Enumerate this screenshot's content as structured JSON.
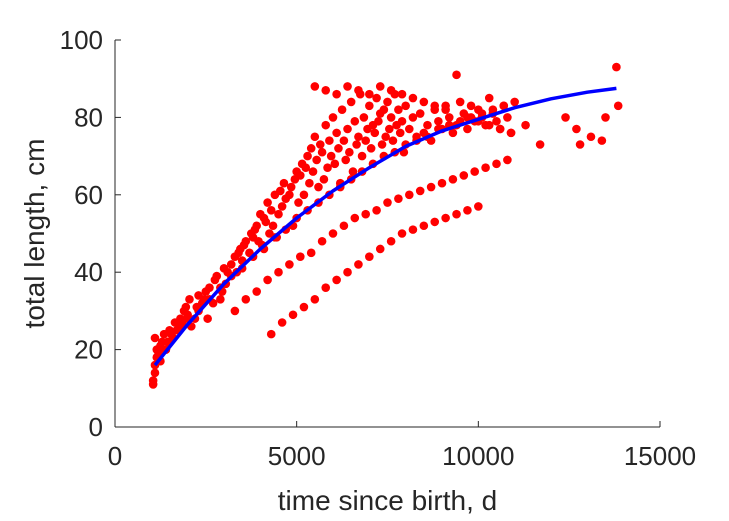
{
  "chart_data": {
    "type": "scatter",
    "title": "",
    "xlabel": "time since birth, d",
    "ylabel": "total length, cm",
    "xlim": [
      0,
      15000
    ],
    "ylim": [
      0,
      100
    ],
    "xticks": [
      0,
      5000,
      10000,
      15000
    ],
    "yticks": [
      0,
      20,
      40,
      60,
      80,
      100
    ],
    "grid": false,
    "legend": "none",
    "colors": {
      "points": "#ff0000",
      "fit": "#0000ff",
      "axis": "#262626"
    },
    "series": [
      {
        "kind": "points",
        "x": [
          1050,
          1050,
          1100,
          1100,
          1150,
          1150,
          1200,
          1200,
          1250,
          1300,
          1350,
          1400,
          1450,
          1500,
          1550,
          1600,
          1650,
          1700,
          1750,
          1800,
          1850,
          1900,
          1950,
          2000,
          2050,
          2100,
          2200,
          2250,
          2300,
          2400,
          2450,
          2500,
          2550,
          2600,
          2700,
          2750,
          2800,
          2900,
          2950,
          3000,
          3050,
          3100,
          3200,
          3300,
          3350,
          3400,
          3450,
          3500,
          3550,
          3600,
          3700,
          3750,
          3800,
          3850,
          3900,
          3950,
          4000,
          4050,
          4100,
          4150,
          4200,
          4250,
          4300,
          4350,
          4400,
          4450,
          4500,
          4550,
          4600,
          4650,
          4700,
          4800,
          4850,
          4900,
          4950,
          5000,
          5050,
          5100,
          5150,
          5200,
          5250,
          5300,
          5350,
          5400,
          5450,
          5500,
          5550,
          5600,
          5650,
          5700,
          5750,
          5800,
          5850,
          5900,
          5950,
          6000,
          6050,
          6100,
          6150,
          6200,
          6250,
          6300,
          6350,
          6400,
          6450,
          6500,
          6550,
          6600,
          6650,
          6700,
          6750,
          6800,
          6850,
          6900,
          6950,
          7000,
          7050,
          7100,
          7150,
          7200,
          7250,
          7300,
          7350,
          7400,
          7450,
          7500,
          7550,
          7600,
          7650,
          7700,
          7750,
          7800,
          7850,
          7900,
          7950,
          8000,
          8100,
          8200,
          8300,
          8400,
          8500,
          8600,
          8700,
          8800,
          8900,
          9000,
          9100,
          9200,
          9300,
          9400,
          9500,
          9600,
          9700,
          9800,
          9900,
          10000,
          10100,
          10200,
          10300,
          10400,
          10500,
          10600,
          10700,
          10800,
          10900,
          11000,
          11300,
          11700,
          12400,
          12700,
          12800,
          13100,
          13400,
          13500,
          13800,
          13850,
          1100,
          1250,
          1400,
          1600,
          1800,
          2000,
          2300,
          2600,
          2900,
          3200,
          3500,
          3800,
          4100,
          4400,
          4700,
          5000,
          5300,
          5600,
          5900,
          6200,
          6500,
          6800,
          7100,
          7400,
          7700,
          8000,
          8300,
          8600,
          8900,
          9200,
          9500,
          9800,
          10100,
          10400,
          10700,
          3300,
          3600,
          3900,
          4200,
          4500,
          4800,
          5100,
          5400,
          5700,
          6000,
          6300,
          6600,
          6900,
          7200,
          7500,
          7800,
          8100,
          8400,
          8700,
          9000,
          9300,
          9600,
          9900,
          10200,
          10500,
          10800,
          5500,
          5800,
          6100,
          6400,
          6700,
          7000,
          7300,
          7600,
          7900,
          8200,
          8500,
          8800,
          9100,
          9400,
          9700,
          10000,
          10300,
          10600,
          10900,
          4300,
          4600,
          4900,
          5200,
          5500,
          5800,
          6100,
          6400,
          6700,
          7000,
          7300,
          7600,
          7900,
          8200,
          8500,
          8800,
          9100,
          9400,
          9700,
          10000
        ],
        "y": [
          11,
          12,
          16,
          23,
          18,
          20,
          19,
          20,
          21,
          22,
          24,
          20,
          22,
          25,
          24,
          23,
          27,
          25,
          26,
          28,
          27,
          30,
          31,
          29,
          33,
          26,
          28,
          31,
          34,
          32,
          33,
          35,
          28,
          36,
          32,
          38,
          39,
          33,
          35,
          41,
          37,
          40,
          42,
          44,
          40,
          45,
          46,
          43,
          47,
          48,
          45,
          50,
          49,
          51,
          52,
          48,
          55,
          47,
          54,
          53,
          58,
          50,
          56,
          52,
          60,
          49,
          55,
          61,
          57,
          63,
          59,
          60,
          62,
          52,
          64,
          66,
          58,
          65,
          68,
          60,
          67,
          70,
          63,
          72,
          66,
          75,
          69,
          62,
          73,
          71,
          64,
          78,
          67,
          74,
          70,
          80,
          68,
          76,
          72,
          63,
          82,
          74,
          69,
          77,
          71,
          84,
          66,
          79,
          73,
          75,
          86,
          70,
          80,
          74,
          77,
          83,
          72,
          78,
          76,
          85,
          79,
          81,
          73,
          82,
          75,
          84,
          77,
          80,
          74,
          86,
          78,
          82,
          76,
          79,
          71,
          83,
          77,
          80,
          75,
          81,
          76,
          78,
          74,
          82,
          79,
          77,
          83,
          80,
          76,
          78,
          84,
          81,
          77,
          83,
          79,
          82,
          80,
          78,
          85,
          81,
          79,
          77,
          83,
          80,
          76,
          84,
          78,
          73,
          80,
          77,
          73,
          75,
          74,
          80,
          93,
          83,
          14,
          17,
          20,
          23,
          26,
          28,
          30,
          33,
          36,
          39,
          41,
          44,
          46,
          49,
          51,
          54,
          56,
          58,
          60,
          62,
          64,
          66,
          68,
          70,
          71,
          73,
          74,
          75,
          77,
          78,
          79,
          80,
          81,
          82,
          83,
          30,
          33,
          35,
          38,
          40,
          42,
          44,
          45,
          48,
          50,
          52,
          54,
          55,
          56,
          58,
          59,
          60,
          61,
          62,
          63,
          64,
          65,
          66,
          67,
          68,
          69,
          88,
          87,
          86,
          88,
          87,
          86,
          88,
          87,
          86,
          85,
          84,
          83,
          82,
          91,
          80,
          79,
          78,
          77,
          76,
          24,
          27,
          29,
          31,
          33,
          36,
          38,
          40,
          42,
          44,
          46,
          48,
          50,
          51,
          52,
          53,
          54,
          55,
          56,
          57
        ]
      },
      {
        "kind": "fit",
        "x": [
          1100,
          2000,
          3000,
          4000,
          5000,
          6000,
          7000,
          8000,
          9000,
          10000,
          11000,
          12000,
          13000,
          13800
        ],
        "y": [
          16,
          26.5,
          37,
          46,
          54,
          61,
          67,
          72.5,
          76.5,
          79.5,
          82.5,
          84.8,
          86.5,
          87.5
        ]
      }
    ]
  }
}
